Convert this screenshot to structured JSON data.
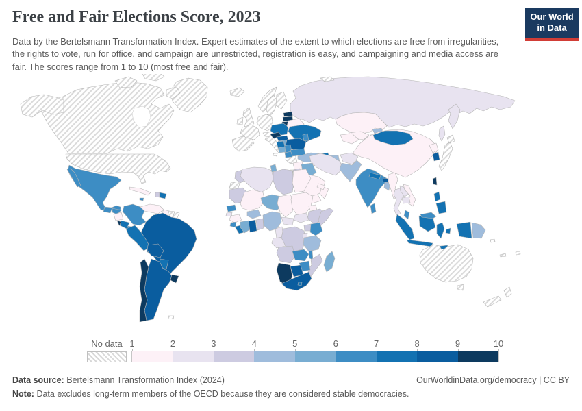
{
  "header": {
    "title": "Free and Fair Elections Score, 2023",
    "subtitle": "Data by the Bertelsmann Transformation Index. Expert estimates of the extent to which elections are free from irregularities, the rights to vote, run for office, and campaign are unrestricted, registration is easy, and campaigning and media access are fair. The scores range from 1 to 10 (most free and fair)."
  },
  "logo": {
    "line1": "Our World",
    "line2": "in Data",
    "bg": "#1a3a60",
    "accent": "#d13d36"
  },
  "legend": {
    "no_data_label": "No data",
    "ticks": [
      "1",
      "2",
      "3",
      "4",
      "5",
      "6",
      "7",
      "8",
      "9",
      "10"
    ]
  },
  "footer": {
    "source_label": "Data source:",
    "source_text": "Bertelsmann Transformation Index (2024)",
    "credit": "OurWorldinData.org/democracy | CC BY",
    "note_label": "Note:",
    "note_text": "Data excludes long-term members of the OECD because they are considered stable democracies."
  },
  "chart_data": {
    "type": "choropleth",
    "title": "Free and Fair Elections Score, 2023",
    "unit": "score (1 to 10, most free and fair)",
    "scale": {
      "min": 1,
      "max": 10,
      "bin_order": [
        "1-2",
        "2-3",
        "3-4",
        "4-5",
        "5-6",
        "6-7",
        "7-8",
        "8-9",
        "9-10"
      ],
      "bin_colors": {
        "1-2": "#fdf1f7",
        "2-3": "#e8e3f0",
        "3-4": "#cdcbe1",
        "4-5": "#9fbcdc",
        "5-6": "#78add2",
        "6-7": "#3d8dc4",
        "7-8": "#1372b2",
        "8-9": "#0a5d9f",
        "9-10": "#0d3a5f"
      },
      "no_data_key": "no-data"
    },
    "values": {
      "greenland": "no-data",
      "canada": "no-data",
      "united-states": "no-data",
      "mexico": "6-7",
      "guatemala": "6-7",
      "honduras": "6-7",
      "nicaragua": "1-2",
      "costa-rica": "9-10",
      "panama": "7-8",
      "cuba": "1-2",
      "jamaica": "6-7",
      "haiti": "3-4",
      "dominican-republic": "7-8",
      "trinidad-and-tobago": "9-10",
      "colombia": "6-7",
      "venezuela": "1-2",
      "guyana": "1-2",
      "suriname": "no-data",
      "french-guiana": "no-data",
      "ecuador": "7-8",
      "peru": "7-8",
      "brazil": "8-9",
      "bolivia": "8-9",
      "paraguay": "7-8",
      "chile": "9-10",
      "argentina": "8-9",
      "uruguay": "9-10",
      "falkland-islands": "no-data",
      "iceland": "no-data",
      "ireland": "no-data",
      "united-kingdom": "no-data",
      "norway": "no-data",
      "sweden": "no-data",
      "finland": "no-data",
      "denmark": "no-data",
      "spain-and-portugal": "no-data",
      "france": "no-data",
      "germany-benelux": "no-data",
      "switzerland-austria": "no-data",
      "italy": "no-data",
      "greece": "no-data",
      "estonia": "9-10",
      "latvia": "9-10",
      "lithuania": "9-10",
      "poland": "7-8",
      "belarus": "1-2",
      "ukraine": "7-8",
      "moldova": "6-7",
      "czechia": "9-10",
      "slovakia": "8-9",
      "hungary": "5-6",
      "romania": "8-9",
      "serbia": "6-7",
      "croatia": "7-8",
      "bosnia-and-herzegovina": "5-6",
      "albania-north-macedonia": "6-7",
      "bulgaria": "6-7",
      "turkey": "4-5",
      "georgia": "7-8",
      "armenia": "3-4",
      "azerbaijan": "4-5",
      "russia": "2-3",
      "svalbard": "no-data",
      "kazakhstan": "1-2",
      "uzbekistan": "1-2",
      "turkmenistan": "1-2",
      "kyrgyzstan": "4-5",
      "tajikistan": "1-2",
      "syria": "1-2",
      "israel": "no-data",
      "jordan": "3-4",
      "iraq": "5-6",
      "iran": "2-3",
      "saudi-arabia": "1-2",
      "yemen": "1-2",
      "oman": "1-2",
      "united-arab-emirates": "1-2",
      "afghanistan": "2-3",
      "pakistan": "4-5",
      "india": "6-7",
      "nepal": "7-8",
      "bhutan": "8-9",
      "bangladesh": "4-5",
      "sri-lanka": "6-7",
      "myanmar": "1-2",
      "thailand": "2-3",
      "laos": "2-3",
      "vietnam": "1-2",
      "cambodia": "2-3",
      "malaysia": "6-7",
      "indonesia": "7-8",
      "philippines": "7-8",
      "papua-new-guinea": "4-5",
      "china": "1-2",
      "mongolia": "7-8",
      "north-korea": "1-2",
      "south-korea": "8-9",
      "japan": "no-data",
      "taiwan": "9-10",
      "australia": "no-data",
      "new-zealand": "no-data",
      "solomon-islands": "no-data",
      "fiji": "no-data",
      "new-caledonia": "no-data",
      "morocco": "3-4",
      "western-sahara": "no-data",
      "algeria": "2-3",
      "tunisia": "5-6",
      "libya": "3-4",
      "egypt": "1-2",
      "mauritania": "3-4",
      "mali": "1-2",
      "niger": "5-6",
      "chad": "1-2",
      "sudan": "1-2",
      "eritrea": "1-2",
      "ethiopia": "3-4",
      "somalia": "3-4",
      "south-sudan": "2-3",
      "central-african-republic": "2-3",
      "senegal": "6-7",
      "guinea-bissau": "2-3",
      "guinea": "1-2",
      "sierra-leone": "6-7",
      "liberia": "7-8",
      "ivory-coast": "5-6",
      "ghana": "8-9",
      "togo-benin": "3-4",
      "burkina-faso": "4-5",
      "nigeria": "4-5",
      "cameroon": "2-3",
      "gabon-congo": "2-3",
      "dr-congo": "3-4",
      "uganda": "3-4",
      "kenya": "6-7",
      "rwanda-burundi": "2-3",
      "tanzania": "4-5",
      "angola": "3-4",
      "zambia": "6-7",
      "malawi": "6-7",
      "mozambique": "3-4",
      "zimbabwe": "6-7",
      "botswana": "8-9",
      "namibia": "9-10",
      "south-africa": "8-9",
      "lesotho": "7-8",
      "madagascar": "5-6"
    }
  }
}
